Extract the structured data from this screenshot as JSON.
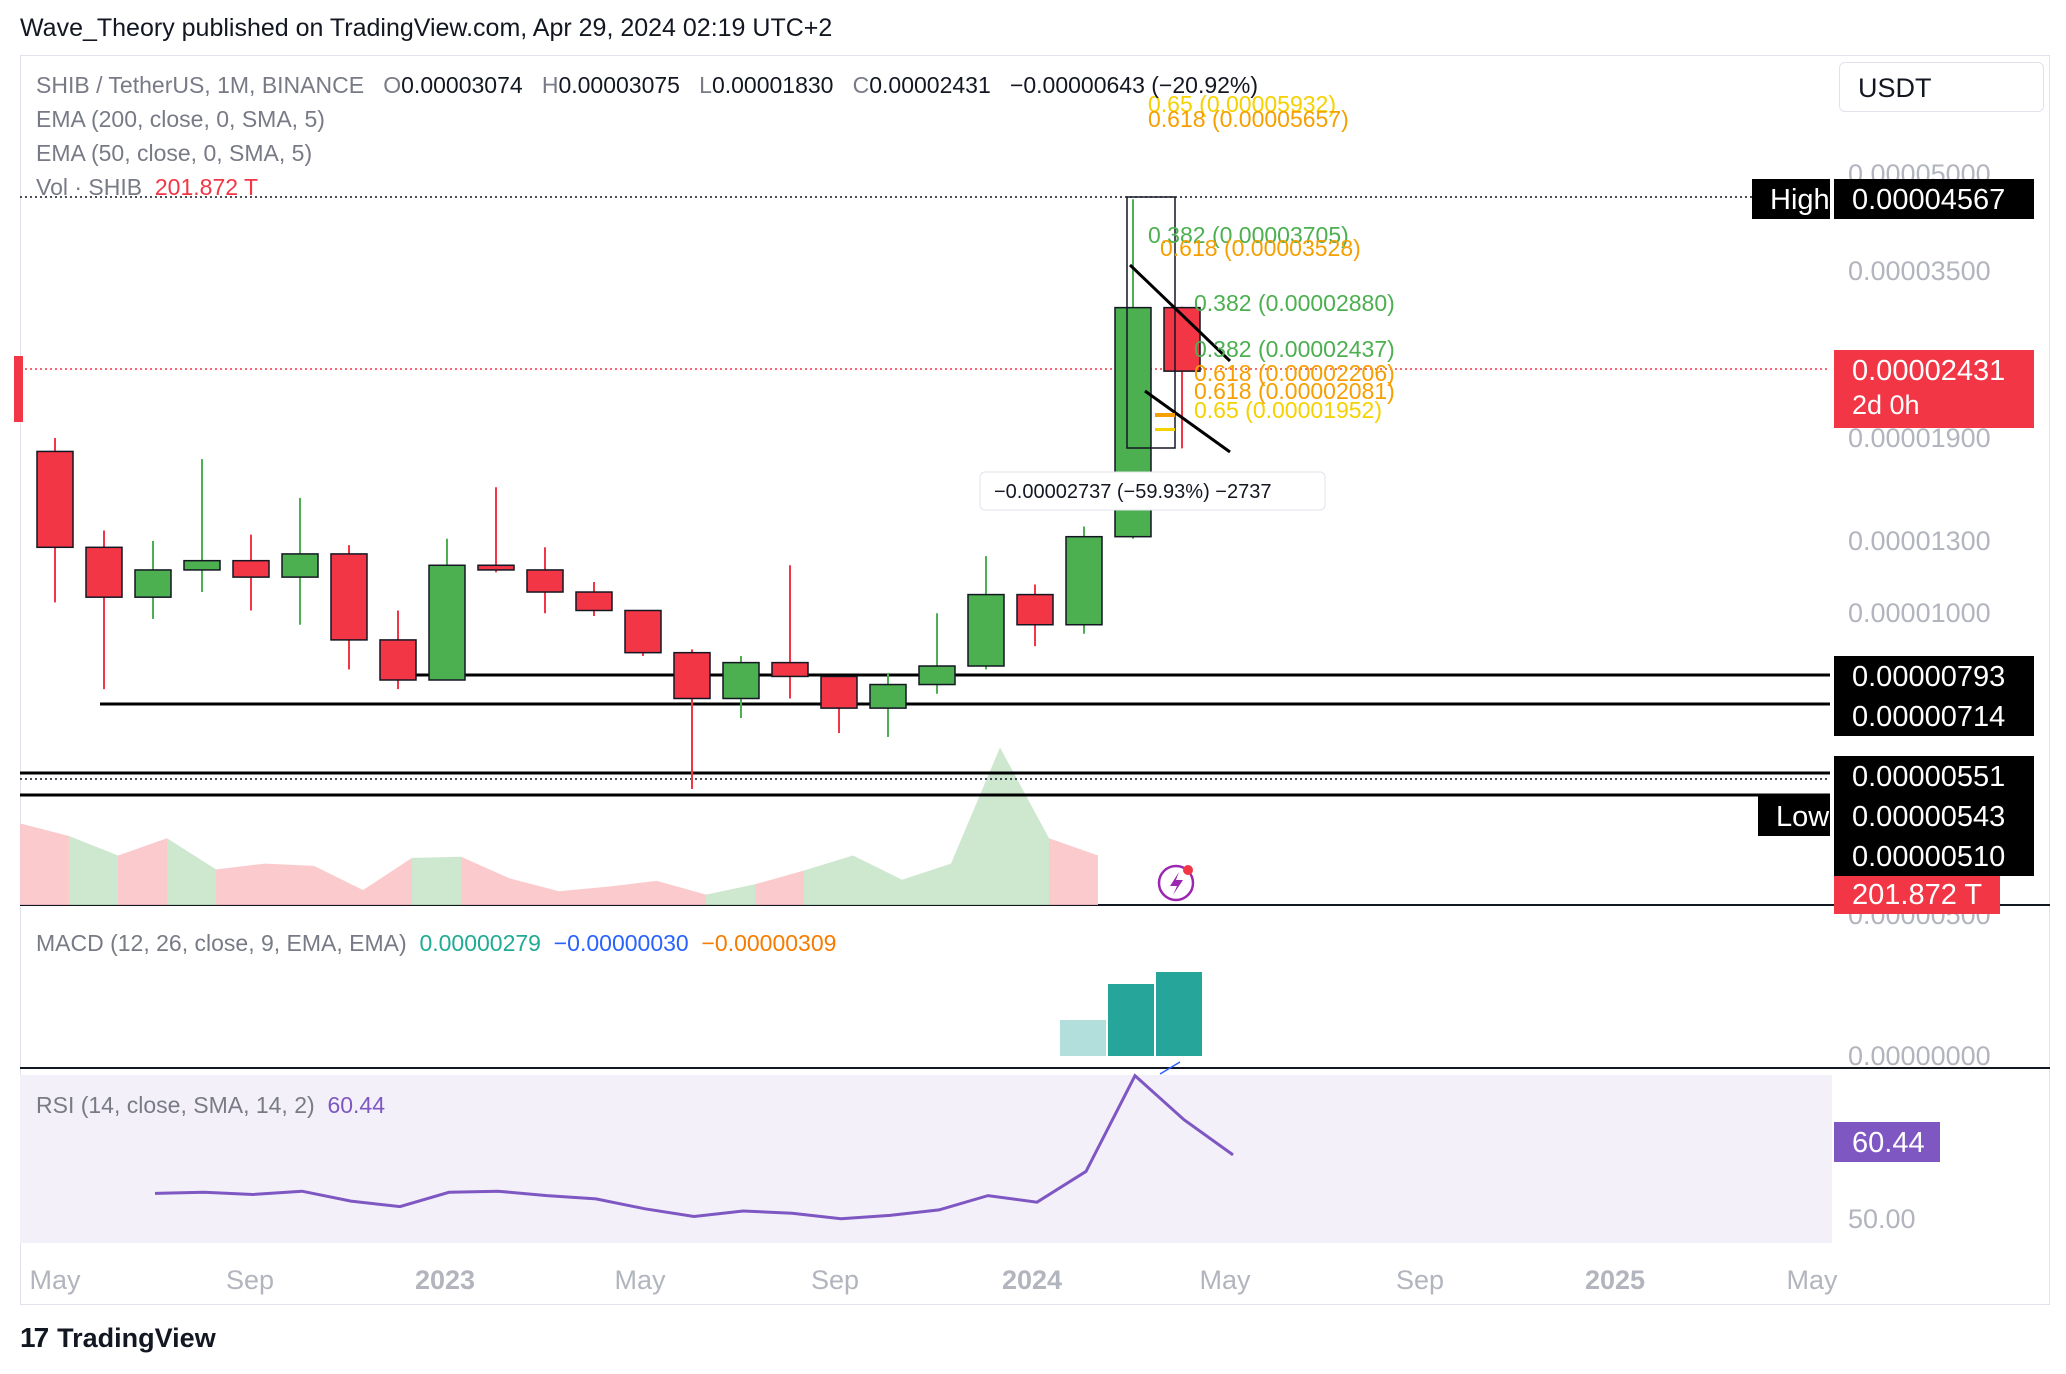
{
  "publisher_line": "Wave_Theory published on TradingView.com, Apr 29, 2024 02:19 UTC+2",
  "currency_button": "USDT",
  "footer_brand": "TradingView",
  "footer_logo": "17",
  "legend": {
    "symbol": "SHIB / TetherUS, 1M, BINANCE",
    "o_key": "O",
    "o": "0.00003074",
    "h_key": "H",
    "h": "0.00003075",
    "l_key": "L",
    "l": "0.00001830",
    "c_key": "C",
    "c": "0.00002431",
    "change": "−0.00000643 (−20.92%)",
    "ema200": "EMA (200, close, 0, SMA, 5)",
    "ema50": "EMA (50, close, 0, SMA, 5)",
    "vol_label": "Vol · SHIB",
    "vol_value": "201.872 T",
    "macd_label": "MACD (12, 26, close, 9, EMA, EMA)",
    "macd_v1": "0.00000279",
    "macd_v2": "−0.00000030",
    "macd_v3": "−0.00000309",
    "rsi_label": "RSI (14, close, SMA, 14, 2)",
    "rsi_value": "60.44"
  },
  "colors": {
    "up": "#4caf50",
    "down": "#f23645",
    "macd_teal": "#26a69a",
    "macd_light": "#b2dfdb",
    "rsi": "#7e57c2",
    "rsi_bg": "#f3f0fa",
    "fib_green": "#4caf50",
    "fib_orange": "#f59f00",
    "fib_yellow": "#f5d100"
  },
  "chart_data": {
    "type": "candlestick",
    "symbol": "SHIB / TetherUS",
    "interval": "1M",
    "exchange": "BINANCE",
    "price_axis_labels": [
      "0.00005000",
      "0.00003500",
      "0.00001900",
      "0.00001300",
      "0.00001000",
      "0.00000500",
      "0.00000000",
      "50.00"
    ],
    "price_axis_values": [
      5e-05,
      3.5e-05,
      1.9e-05,
      1.3e-05,
      1e-05
    ],
    "time_axis": [
      {
        "label": "May",
        "bold": false
      },
      {
        "label": "Sep",
        "bold": false
      },
      {
        "label": "2023",
        "bold": true
      },
      {
        "label": "May",
        "bold": false
      },
      {
        "label": "Sep",
        "bold": false
      },
      {
        "label": "2024",
        "bold": true
      },
      {
        "label": "May",
        "bold": false
      },
      {
        "label": "Sep",
        "bold": false
      },
      {
        "label": "2025",
        "bold": true
      },
      {
        "label": "May",
        "bold": false
      }
    ],
    "candles": [
      {
        "o": 1.81e-05,
        "h": 1.9e-05,
        "l": 1.05e-05,
        "c": 1.28e-05
      },
      {
        "o": 1.28e-05,
        "h": 1.36e-05,
        "l": 7.8e-06,
        "c": 1.07e-05
      },
      {
        "o": 1.07e-05,
        "h": 1.31e-05,
        "l": 9.9e-06,
        "c": 1.18e-05
      },
      {
        "o": 1.18e-05,
        "h": 1.76e-05,
        "l": 1.09e-05,
        "c": 1.22e-05
      },
      {
        "o": 1.22e-05,
        "h": 1.34e-05,
        "l": 1.02e-05,
        "c": 1.15e-05
      },
      {
        "o": 1.15e-05,
        "h": 1.53e-05,
        "l": 9.7e-06,
        "c": 1.25e-05
      },
      {
        "o": 1.25e-05,
        "h": 1.29e-05,
        "l": 8.3e-06,
        "c": 9.2e-06
      },
      {
        "o": 9.2e-06,
        "h": 1.02e-05,
        "l": 7.8e-06,
        "c": 8e-06
      },
      {
        "o": 8e-06,
        "h": 1.32e-05,
        "l": 8e-06,
        "c": 1.2e-05
      },
      {
        "o": 1.2e-05,
        "h": 1.59e-05,
        "l": 1.17e-05,
        "c": 1.18e-05
      },
      {
        "o": 1.18e-05,
        "h": 1.28e-05,
        "l": 1.01e-05,
        "c": 1.09e-05
      },
      {
        "o": 1.09e-05,
        "h": 1.13e-05,
        "l": 1e-05,
        "c": 1.02e-05
      },
      {
        "o": 1.02e-05,
        "h": 1.02e-05,
        "l": 8.7e-06,
        "c": 8.8e-06
      },
      {
        "o": 8.8e-06,
        "h": 8.9e-06,
        "l": 5.5e-06,
        "c": 7.6e-06
      },
      {
        "o": 7.6e-06,
        "h": 8.7e-06,
        "l": 7.2e-06,
        "c": 8.5e-06
      },
      {
        "o": 8.5e-06,
        "h": 1.2e-05,
        "l": 7.6e-06,
        "c": 8.1e-06
      },
      {
        "o": 8.1e-06,
        "h": 8.1e-06,
        "l": 6.8e-06,
        "c": 7.4e-06
      },
      {
        "o": 7.4e-06,
        "h": 8.2e-06,
        "l": 6.7e-06,
        "c": 7.9e-06
      },
      {
        "o": 7.9e-06,
        "h": 1.01e-05,
        "l": 7.7e-06,
        "c": 8.4e-06
      },
      {
        "o": 8.4e-06,
        "h": 1.24e-05,
        "l": 8.3e-06,
        "c": 1.08e-05
      },
      {
        "o": 1.08e-05,
        "h": 1.12e-05,
        "l": 9e-06,
        "c": 9.7e-06
      },
      {
        "o": 9.7e-06,
        "h": 1.38e-05,
        "l": 9.4e-06,
        "c": 1.33e-05
      },
      {
        "o": 1.33e-05,
        "h": 4.56e-05,
        "l": 1.32e-05,
        "c": 3.07e-05
      },
      {
        "o": 3.07e-05,
        "h": 3.08e-05,
        "l": 1.83e-05,
        "c": 2.43e-05
      }
    ],
    "markers": {
      "high": {
        "label": "High",
        "value": "0.00004567"
      },
      "low": {
        "label": "Low",
        "value": "0.00000543"
      },
      "last": {
        "value": "0.00002431",
        "countdown": "2d 0h"
      }
    },
    "horizontal_levels": [
      {
        "value": "0.00000793"
      },
      {
        "value": "0.00000714"
      },
      {
        "value": "0.00000551"
      },
      {
        "value": "0.00000510"
      }
    ],
    "fib_labels": [
      {
        "text": "0.65 (0.00005932)",
        "color": "yellow"
      },
      {
        "text": "0.618 (0.00005657)",
        "color": "orange"
      },
      {
        "text": "0.382 (0.00003705)",
        "color": "green"
      },
      {
        "text": "0.618 (0.00003528)",
        "color": "orange"
      },
      {
        "text": "0.382 (0.00002880)",
        "color": "green"
      },
      {
        "text": "0.382 (0.00002437)",
        "color": "green"
      },
      {
        "text": "0.618 (0.00002206)",
        "color": "orange"
      },
      {
        "text": "0.618 (0.00002081)",
        "color": "orange"
      },
      {
        "text": "0.65 (0.00001952)",
        "color": "yellow"
      }
    ],
    "measure_label": "−0.00002737 (−59.93%) −2737",
    "volume_values": [
      7.1,
      6.0,
      4.3,
      5.8,
      3.1,
      3.6,
      3.4,
      1.3,
      4.1,
      4.2,
      2.3,
      1.2,
      1.6,
      2.1,
      0.9,
      1.8,
      3.0,
      4.3,
      2.2,
      3.6,
      13.7,
      5.8
    ],
    "volume_last": "201.872 T",
    "macd_hist": [
      0.6,
      1.2,
      1.4
    ],
    "rsi_values": [
      51.6,
      51.7,
      51.5,
      51.8,
      50.9,
      50.4,
      51.7,
      51.8,
      51.4,
      51.1,
      50.2,
      49.5,
      50.0,
      49.8,
      49.3,
      49.6,
      50.1,
      51.4,
      50.8,
      53.6,
      62.3,
      58.3
    ],
    "rsi_last": "60.44"
  }
}
